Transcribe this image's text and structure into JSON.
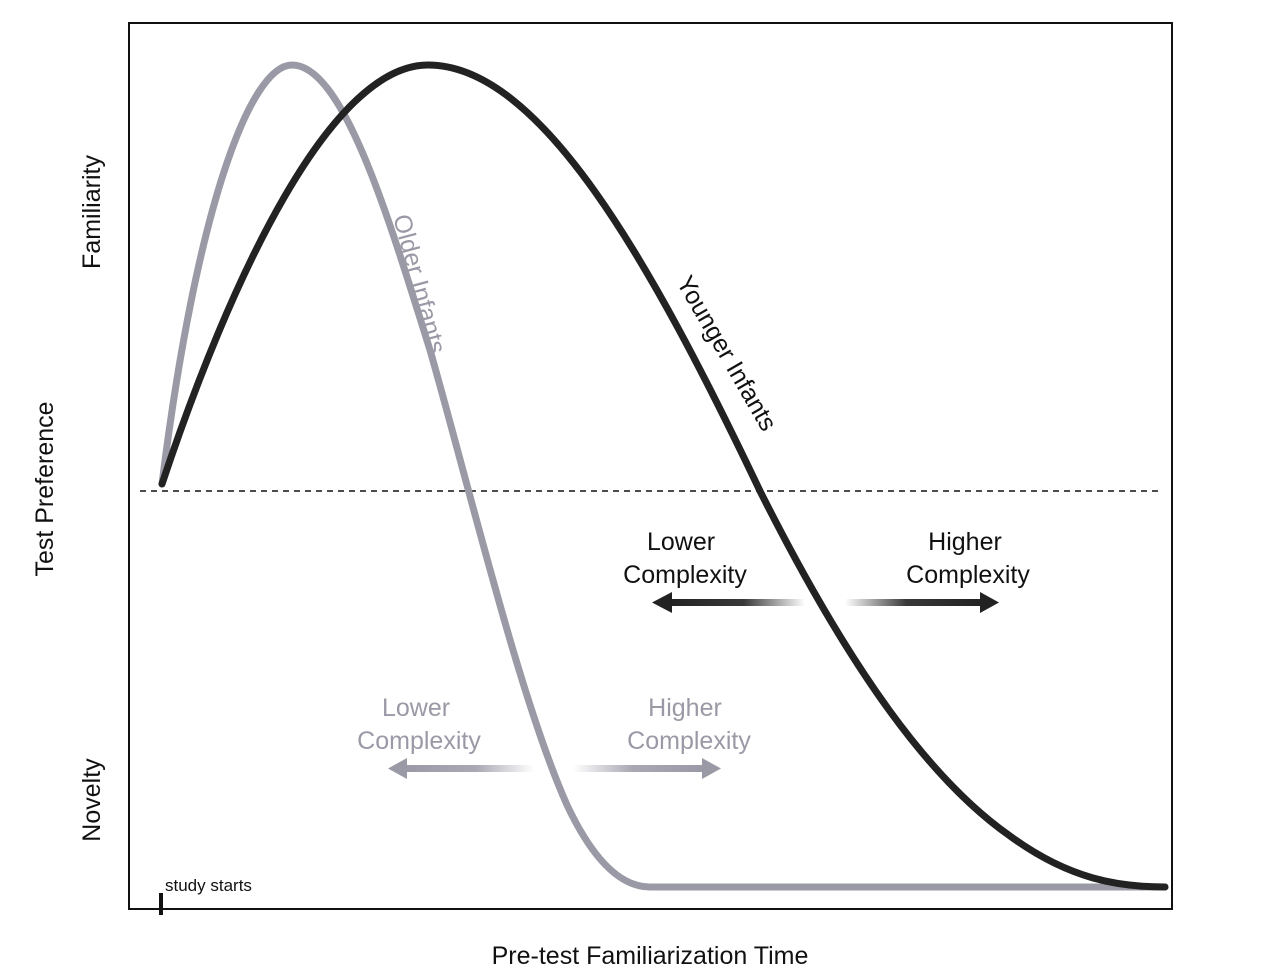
{
  "axes": {
    "x_label": "Pre-test Familiarization Time",
    "y_label": "Test Preference",
    "y_top": "Familiarity",
    "y_bottom": "Novelty"
  },
  "marker": {
    "label": "study starts"
  },
  "curves": {
    "older": {
      "label": "Older Infants",
      "color": "#9a99a6"
    },
    "younger": {
      "label": "Younger Infants",
      "color": "#222222"
    }
  },
  "complexity": {
    "older": {
      "lower_1": "Lower",
      "lower_2": "Complexity",
      "higher_1": "Higher",
      "higher_2": "Complexity",
      "color": "#9a99a6"
    },
    "younger": {
      "lower_1": "Lower",
      "lower_2": "Complexity",
      "higher_1": "Higher",
      "higher_2": "Complexity",
      "color": "#222222"
    }
  }
}
